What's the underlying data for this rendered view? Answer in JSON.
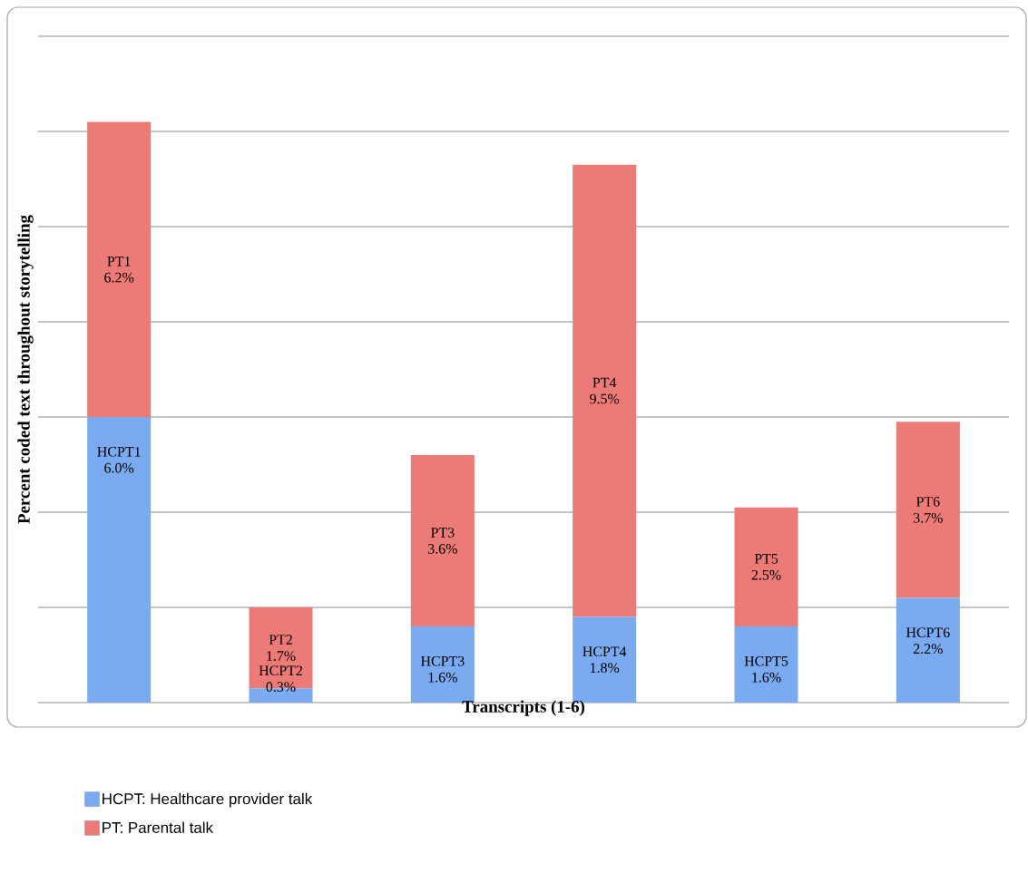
{
  "chart_data": {
    "type": "bar",
    "stacked": true,
    "xlabel": "Transcripts (1-6)",
    "ylabel": "Percent coded text throughout storytelling",
    "categories": [
      null,
      null,
      null,
      null,
      null,
      null
    ],
    "series": [
      {
        "name": "HCPT: Healthcare provider talk",
        "color": "#7aaaf0",
        "values": [
          6.0,
          0.3,
          1.6,
          1.8,
          1.6,
          2.2
        ],
        "value_labels": [
          "HCPT1 6.0%",
          "HCPT2 0.3%",
          "HCPT3 1.6%",
          "HCPT4 1.8%",
          "HCPT5 1.6%",
          "HCPT6 2.2%"
        ]
      },
      {
        "name": "PT: Parental talk",
        "color": "#ec7a76",
        "values": [
          6.2,
          1.7,
          3.6,
          9.5,
          2.5,
          3.7
        ],
        "value_labels": [
          "PT1 6.2%",
          "PT2 1.7%",
          "PT3 3.6%",
          "PT4 9.5%",
          "PT5 2.5%",
          "PT6 3.7%"
        ]
      }
    ],
    "ylim": [
      0,
      14
    ],
    "yticks": [
      {
        "value": 0,
        "label": null
      },
      {
        "value": 2,
        "label": null
      },
      {
        "value": 4,
        "label": null
      },
      {
        "value": 6,
        "label": null
      },
      {
        "value": 8,
        "label": null
      },
      {
        "value": 10,
        "label": null
      },
      {
        "value": 12,
        "label": null
      },
      {
        "value": 14,
        "label": null
      }
    ],
    "tick_labels": false,
    "grid": "y",
    "legend": "bottom"
  }
}
